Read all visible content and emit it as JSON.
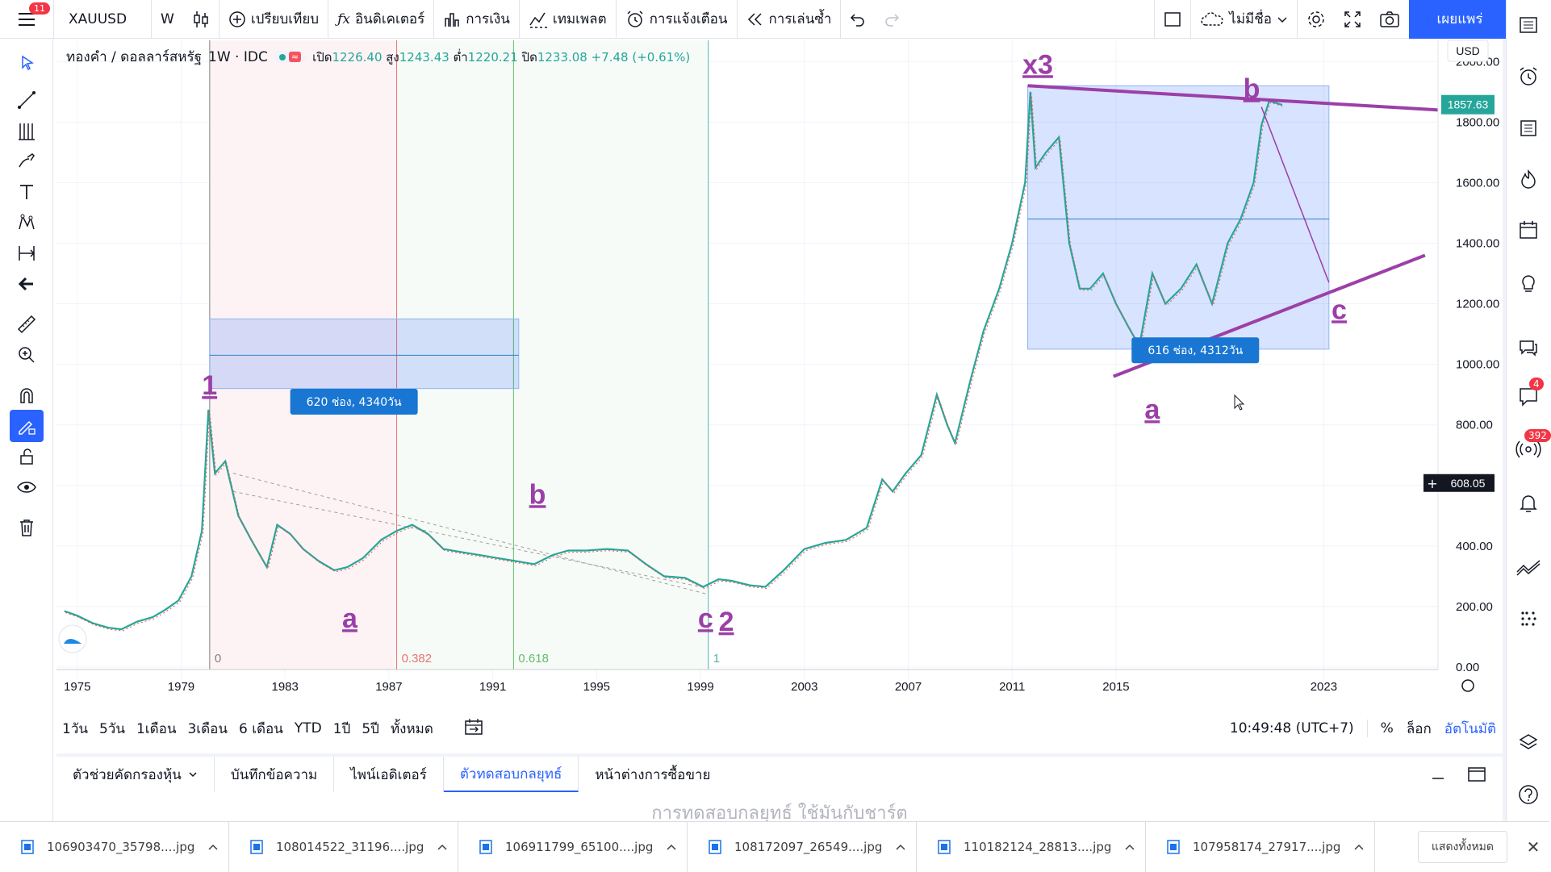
{
  "toolbar": {
    "menu_badge": "11",
    "symbol": "XAUUSD",
    "interval": "W",
    "compare": "เปรียบเทียบ",
    "indicators": "อินดิเคเตอร์",
    "financials": "การเงิน",
    "templates": "เทมเพลต",
    "alert": "การแจ้งเตือน",
    "replay": "การเล่นซ้ำ",
    "layout_name": "ไม่มีชื่อ",
    "publish": "เผยแพร่"
  },
  "legend": {
    "title": "ทองคำ / ดอลลาร์สหรัฐ",
    "interval": "1W · IDC",
    "open_label": "เปิด",
    "open": "1226.40",
    "high_label": "สูง",
    "high": "1243.43",
    "low_label": "ต่ำ",
    "low": "1220.21",
    "close_label": "ปิด",
    "close": "1233.08",
    "change": "+7.48 (+0.61%)"
  },
  "chart_data": {
    "type": "line",
    "symbol": "XAUUSD",
    "currency": "USD",
    "x_ticks": [
      "1975",
      "1979",
      "1983",
      "1987",
      "1991",
      "1995",
      "1999",
      "2003",
      "2007",
      "2011",
      "2015",
      "2023"
    ],
    "y_ticks": [
      "0.00",
      "200.00",
      "400.00",
      "600.00",
      "800.00",
      "1000.00",
      "1200.00",
      "1400.00",
      "1600.00",
      "1800.00",
      "2000.00"
    ],
    "ylim": [
      -40,
      2070
    ],
    "xlim": [
      1974.2,
      2027.4
    ],
    "series": [
      {
        "x": [
          1974.5,
          1975.0,
          1975.6,
          1976.2,
          1976.7,
          1977.3,
          1977.9,
          1978.4,
          1978.9,
          1979.4,
          1979.8,
          1980.05,
          1980.3,
          1980.7,
          1981.2,
          1981.7,
          1982.3,
          1982.7,
          1983.2,
          1983.7,
          1984.3,
          1984.9,
          1985.4,
          1986.0,
          1986.7,
          1987.3,
          1987.9,
          1988.5,
          1989.1,
          1989.8,
          1990.5,
          1991.2,
          1991.9,
          1992.6,
          1993.3,
          1993.9,
          1994.6,
          1995.4,
          1996.2,
          1996.9,
          1997.6,
          1998.4,
          1999.1,
          1999.7,
          2000.2,
          2000.9,
          2001.5,
          2002.2,
          2003.0,
          2003.8,
          2004.6,
          2005.4,
          2006.0,
          2006.4,
          2006.9,
          2007.5,
          2008.1,
          2008.5,
          2008.8,
          2009.4,
          2009.9,
          2010.5,
          2011.0,
          2011.5,
          2011.7,
          2011.9,
          2012.3,
          2012.8,
          2013.2,
          2013.6,
          2014.0,
          2014.5,
          2015.0,
          2015.5,
          2015.9,
          2016.4,
          2016.9,
          2017.5,
          2018.1,
          2018.7,
          2019.3,
          2019.8,
          2020.3,
          2020.6,
          2020.9,
          2021.4
        ],
        "y": [
          185,
          170,
          145,
          130,
          125,
          150,
          165,
          190,
          220,
          300,
          450,
          850,
          640,
          680,
          500,
          420,
          330,
          470,
          440,
          390,
          350,
          320,
          330,
          360,
          420,
          450,
          470,
          440,
          390,
          380,
          370,
          360,
          350,
          340,
          370,
          385,
          385,
          390,
          385,
          340,
          300,
          295,
          265,
          290,
          285,
          270,
          265,
          320,
          390,
          410,
          420,
          460,
          620,
          580,
          640,
          700,
          900,
          800,
          740,
          950,
          1110,
          1250,
          1400,
          1600,
          1900,
          1650,
          1700,
          1750,
          1400,
          1250,
          1250,
          1300,
          1200,
          1120,
          1060,
          1300,
          1200,
          1250,
          1330,
          1200,
          1400,
          1480,
          1600,
          1790,
          1870,
          1857
        ]
      }
    ],
    "price_tags": {
      "last": "1857.63",
      "crosshair": "608.05"
    },
    "fib_levels": [
      "0",
      "0.382",
      "0.618",
      "1"
    ],
    "measure_labels": [
      "620 ช่อง, 4340วัน",
      "616 ช่อง, 4312วัน"
    ],
    "wave_labels": [
      "1",
      "a",
      "b",
      "c",
      "2",
      "x3",
      "b",
      "a",
      "c"
    ]
  },
  "rangebar": {
    "ranges": [
      "1วัน",
      "5วัน",
      "1เดือน",
      "3เดือน",
      "6 เดือน",
      "YTD",
      "1ปี",
      "5ปี",
      "ทั้งหมด"
    ],
    "clock": "10:49:48 (UTC+7)",
    "percent": "%",
    "log": "ล็อก",
    "auto": "อัตโนมัติ"
  },
  "panel": {
    "tabs": [
      "ตัวช่วยคัดกรองหุ้น",
      "บันทึกข้อความ",
      "ไพน์เอดิเตอร์",
      "ตัวทดสอบกลยุทธ์",
      "หน้าต่างการซื้อขาย"
    ],
    "hint": "การทดสอบกลยุทธ์ ใช้มันกับชาร์ต"
  },
  "right_sidebar": {
    "badge_chat": "4",
    "badge_ideas": "392"
  },
  "downloads": {
    "files": [
      "106903470_35798....jpg",
      "108014522_31196....jpg",
      "106911799_65100....jpg",
      "108172097_26549....jpg",
      "110182124_28813....jpg",
      "107958174_27917....jpg"
    ],
    "show_all": "แสดงทั้งหมด"
  }
}
